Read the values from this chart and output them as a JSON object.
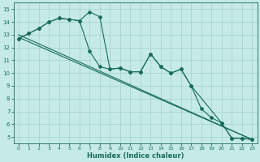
{
  "title": "",
  "xlabel": "Humidex (Indice chaleur)",
  "ylabel": "",
  "bg_color": "#c5eae7",
  "grid_color": "#a8d5d1",
  "line_color": "#1a6b5a",
  "xlim": [
    -0.5,
    23.5
  ],
  "ylim": [
    4.5,
    15.5
  ],
  "xticks": [
    0,
    1,
    2,
    3,
    4,
    5,
    6,
    7,
    8,
    9,
    10,
    11,
    12,
    13,
    14,
    15,
    16,
    17,
    18,
    19,
    20,
    21,
    22,
    23
  ],
  "yticks": [
    5,
    6,
    7,
    8,
    9,
    10,
    11,
    12,
    13,
    14,
    15
  ],
  "series1_x": [
    0,
    1,
    2,
    3,
    4,
    5,
    6,
    7,
    8,
    9,
    10,
    11,
    12,
    13,
    14,
    15,
    16,
    17,
    20,
    21,
    22,
    23
  ],
  "series1_y": [
    12.7,
    13.1,
    13.5,
    14.0,
    14.3,
    14.2,
    14.1,
    14.8,
    14.4,
    10.3,
    10.4,
    10.1,
    10.1,
    11.5,
    10.5,
    10.0,
    10.3,
    9.0,
    6.1,
    4.9,
    4.9,
    4.8
  ],
  "series2_x": [
    0,
    1,
    2,
    3,
    4,
    5,
    6,
    7,
    8,
    9,
    10,
    11,
    12,
    13,
    14,
    15,
    16,
    17,
    18,
    19,
    20,
    21,
    22,
    23
  ],
  "series2_y": [
    12.7,
    13.1,
    13.5,
    14.0,
    14.3,
    14.2,
    14.1,
    11.7,
    10.5,
    10.3,
    10.4,
    10.1,
    10.1,
    11.5,
    10.5,
    10.0,
    10.3,
    9.0,
    7.2,
    6.5,
    6.1,
    4.9,
    4.9,
    4.8
  ],
  "line1_x": [
    0,
    23
  ],
  "line1_y": [
    12.8,
    4.8
  ],
  "line2_x": [
    0,
    23
  ],
  "line2_y": [
    13.0,
    4.8
  ],
  "xlabel_fontsize": 6,
  "tick_fontsize": 5,
  "linewidth": 0.8,
  "markersize": 2.0
}
